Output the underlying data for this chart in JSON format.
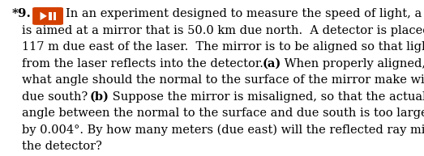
{
  "problem_number": "*9.",
  "icon_color": "#d44000",
  "background_color": "#ffffff",
  "text_color": "#000000",
  "font_size": 10.5,
  "fig_width": 5.23,
  "fig_height": 1.93,
  "dpi": 100,
  "lines": [
    [
      {
        "text": "In an experiment designed to measure the speed of light, a laser",
        "bold": false
      }
    ],
    [
      {
        "text": "is aimed at a mirror that is 50.0 km due north.  A detector is placed",
        "bold": false
      }
    ],
    [
      {
        "text": "117 m due east of the laser.  The mirror is to be aligned so that light",
        "bold": false
      }
    ],
    [
      {
        "text": "from the laser reflects into the detector. ",
        "bold": false
      },
      {
        "text": "(a)",
        "bold": true
      },
      {
        "text": " When properly aligned,",
        "bold": false
      }
    ],
    [
      {
        "text": "what angle should the normal to the surface of the mirror make with",
        "bold": false
      }
    ],
    [
      {
        "text": "due south? ",
        "bold": false
      },
      {
        "text": "(b)",
        "bold": true
      },
      {
        "text": " Suppose the mirror is misaligned, so that the actual",
        "bold": false
      }
    ],
    [
      {
        "text": "angle between the normal to the surface and due south is too large",
        "bold": false
      }
    ],
    [
      {
        "text": "by 0.004°. By how many meters (due east) will the reflected ray miss",
        "bold": false
      }
    ],
    [
      {
        "text": "the detector?",
        "bold": false
      }
    ]
  ]
}
